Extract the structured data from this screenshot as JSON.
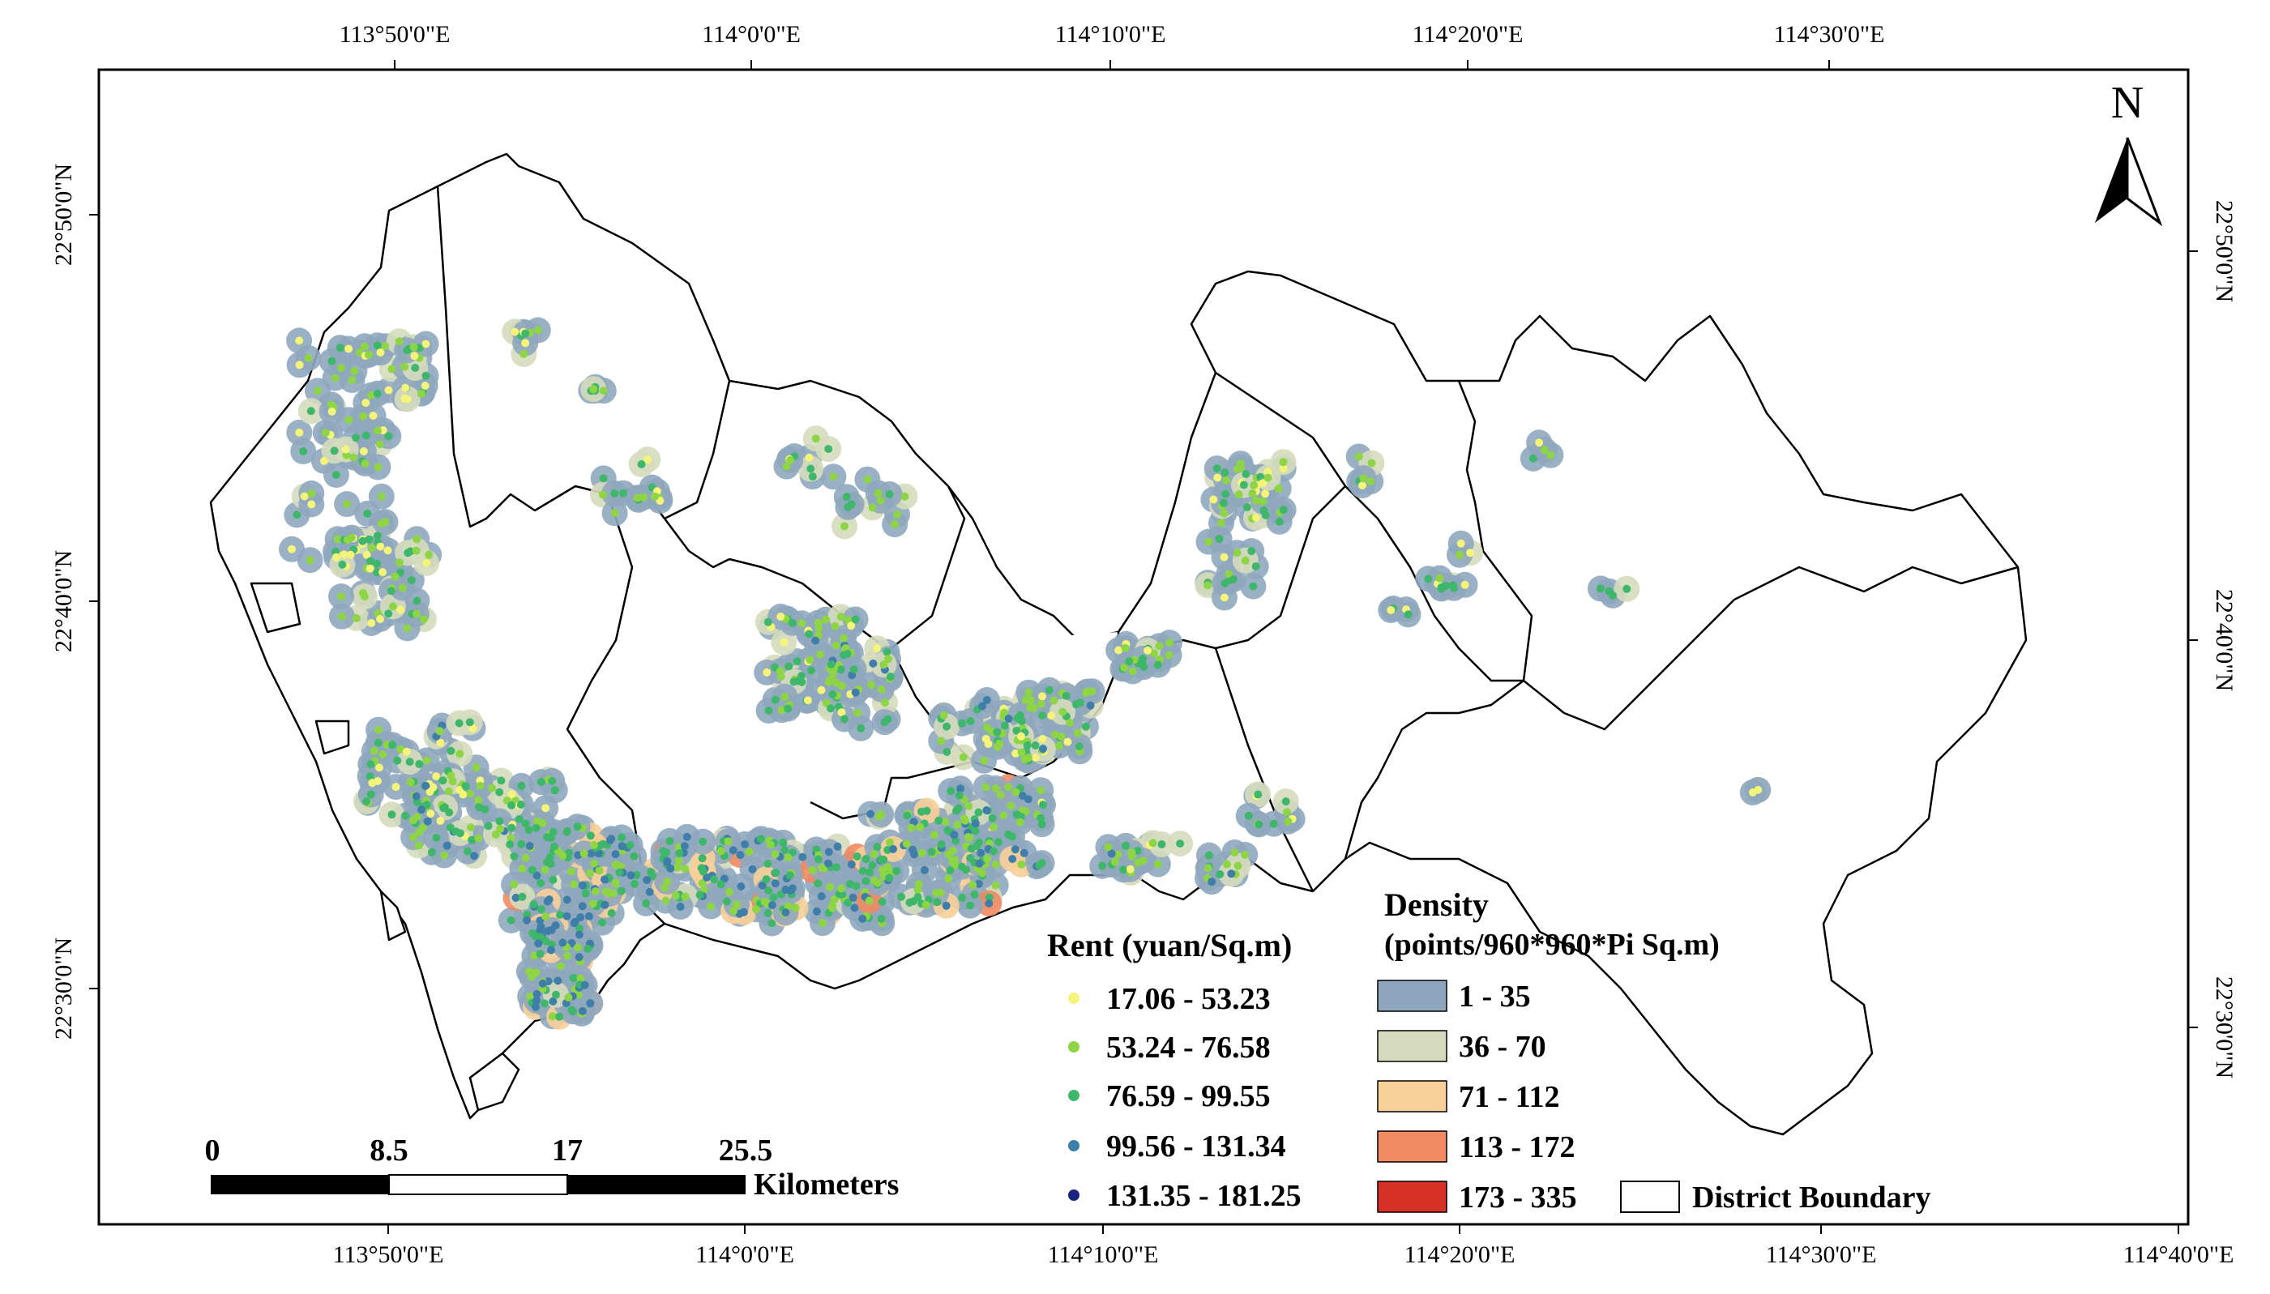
{
  "map": {
    "top_ticks": [
      "113°50'0\"E",
      "114°0'0\"E",
      "114°10'0\"E",
      "114°20'0\"E",
      "114°30'0\"E"
    ],
    "bottom_ticks": [
      "113°50'0\"E",
      "114°0'0\"E",
      "114°10'0\"E",
      "114°20'0\"E",
      "114°30'0\"E",
      "114°40'0\"E"
    ],
    "left_ticks": [
      "22°50'0\"N",
      "22°40'0\"N",
      "22°30'0\"N"
    ],
    "right_ticks": [
      "22°50'0\"N",
      "22°40'0\"N",
      "22°30'0\"N"
    ],
    "north_label": "N"
  },
  "legend": {
    "rent": {
      "title": "Rent (yuan/Sq.m)",
      "classes": [
        {
          "label": "17.06 - 53.23",
          "color": "#f4f37a"
        },
        {
          "label": "53.24 - 76.58",
          "color": "#8ed545"
        },
        {
          "label": "76.59 - 99.55",
          "color": "#3fb76a"
        },
        {
          "label": "99.56 - 131.34",
          "color": "#3e7ea8"
        },
        {
          "label": "131.35 - 181.25",
          "color": "#1a237e"
        }
      ]
    },
    "density": {
      "title": "Density",
      "subtitle": "(points/960*960*Pi Sq.m)",
      "classes": [
        {
          "label": "1 - 35",
          "color": "#8fa7be"
        },
        {
          "label": "36 - 70",
          "color": "#d5dbbc"
        },
        {
          "label": "71 - 112",
          "color": "#f7cf99"
        },
        {
          "label": "113 - 172",
          "color": "#f08a63"
        },
        {
          "label": "173 - 335",
          "color": "#d73027"
        }
      ]
    },
    "boundary": {
      "label": "District Boundary"
    }
  },
  "scale_bar": {
    "labels": [
      "0",
      "8.5",
      "17",
      "25.5"
    ],
    "unit": "Kilometers"
  }
}
